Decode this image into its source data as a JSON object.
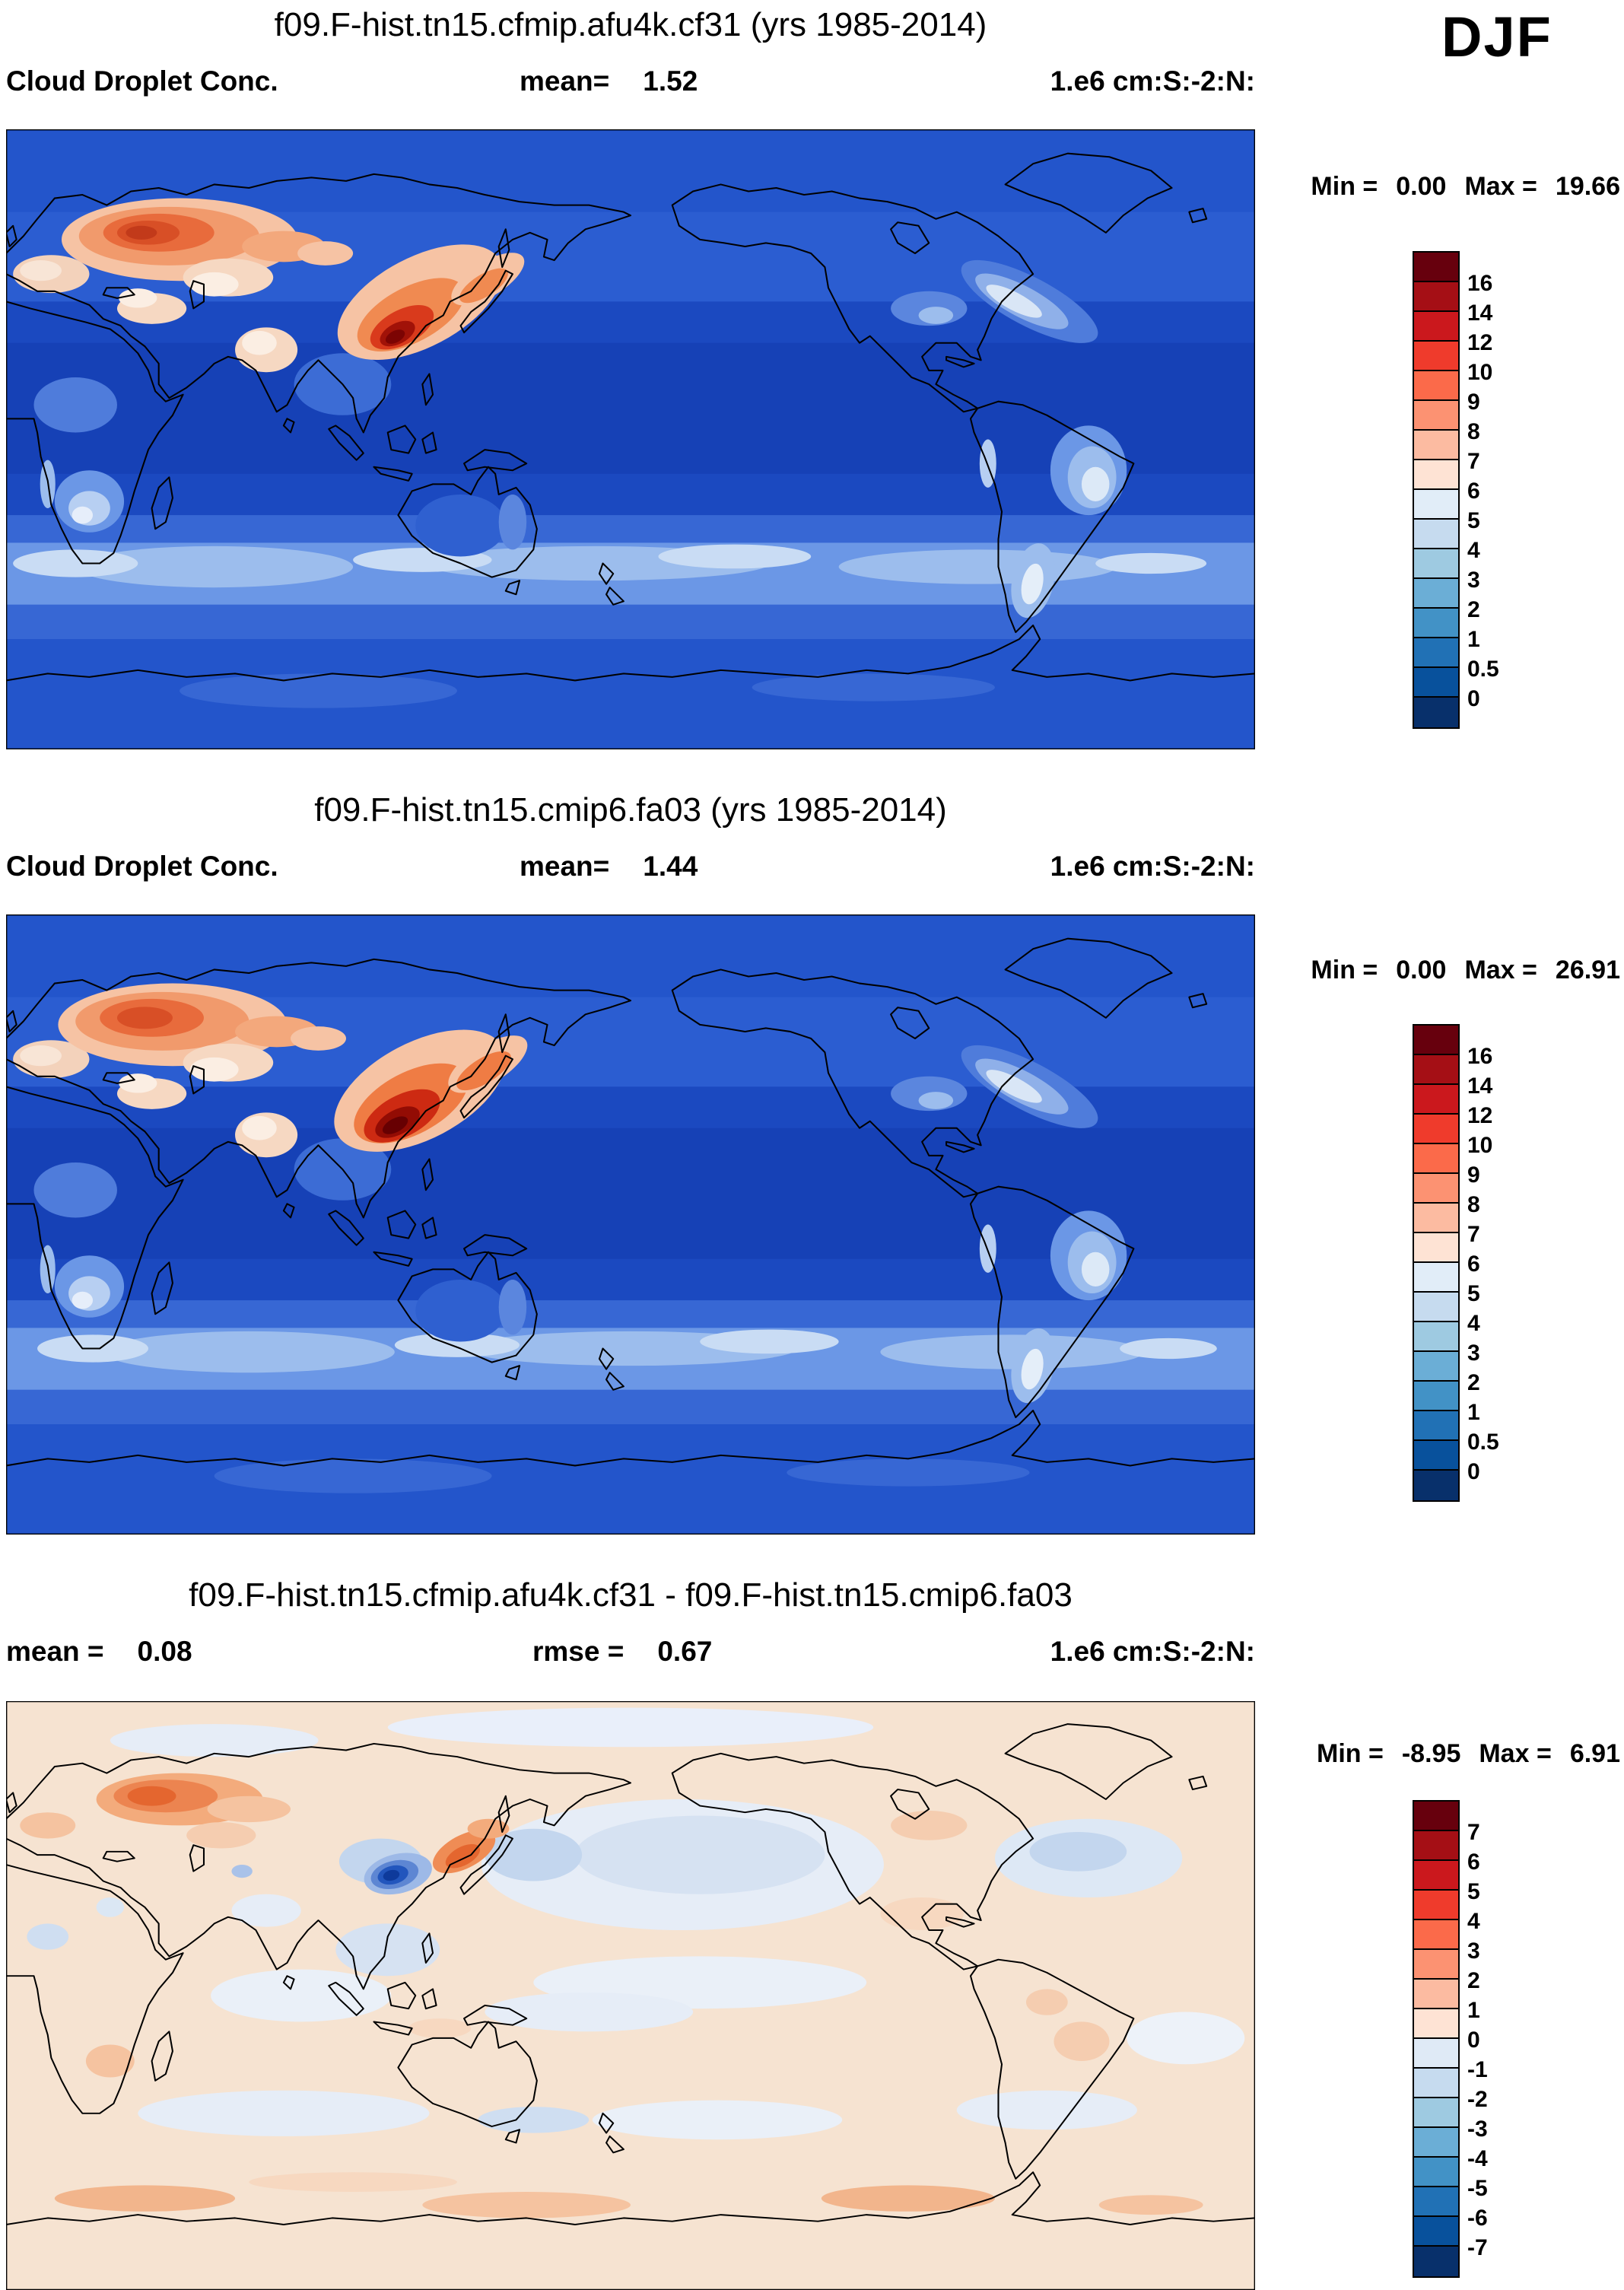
{
  "season_label": "DJF",
  "panels": [
    {
      "title": "f09.F-hist.tn15.cfmip.afu4k.cf31 (yrs 1985-2014)",
      "field_label": "Cloud Droplet Conc.",
      "stats": [
        {
          "label": "mean=",
          "value": "1.52"
        }
      ],
      "units": "1.e6 cm:S:-2:N:",
      "minmax": {
        "min_label": "Min =",
        "min_value": "0.00",
        "max_label": "Max =",
        "max_value": "19.66"
      },
      "colorbar": {
        "labels": [
          "16",
          "14",
          "12",
          "10",
          "9",
          "8",
          "7",
          "6",
          "5",
          "4",
          "3",
          "2",
          "1",
          "0.5",
          "0"
        ],
        "colors": [
          "#67000d",
          "#a50f15",
          "#cb181d",
          "#ef3b2c",
          "#fb6a4a",
          "#fc9272",
          "#fcbba1",
          "#fee3d4",
          "#e1edf8",
          "#c6dbef",
          "#9ecae1",
          "#6baed6",
          "#4292c6",
          "#2171b5",
          "#08519c",
          "#08306b"
        ]
      }
    },
    {
      "title": "f09.F-hist.tn15.cmip6.fa03 (yrs 1985-2014)",
      "field_label": "Cloud Droplet Conc.",
      "stats": [
        {
          "label": "mean=",
          "value": "1.44"
        }
      ],
      "units": "1.e6 cm:S:-2:N:",
      "minmax": {
        "min_label": "Min =",
        "min_value": "0.00",
        "max_label": "Max =",
        "max_value": "26.91"
      },
      "colorbar": {
        "labels": [
          "16",
          "14",
          "12",
          "10",
          "9",
          "8",
          "7",
          "6",
          "5",
          "4",
          "3",
          "2",
          "1",
          "0.5",
          "0"
        ],
        "colors": [
          "#67000d",
          "#a50f15",
          "#cb181d",
          "#ef3b2c",
          "#fb6a4a",
          "#fc9272",
          "#fcbba1",
          "#fee3d4",
          "#e1edf8",
          "#c6dbef",
          "#9ecae1",
          "#6baed6",
          "#4292c6",
          "#2171b5",
          "#08519c",
          "#08306b"
        ]
      }
    },
    {
      "title": "f09.F-hist.tn15.cfmip.afu4k.cf31 - f09.F-hist.tn15.cmip6.fa03",
      "stats": [
        {
          "label": "mean =",
          "value": "0.08"
        },
        {
          "label": "rmse =",
          "value": "0.67"
        }
      ],
      "units": "1.e6 cm:S:-2:N:",
      "minmax": {
        "min_label": "Min =",
        "min_value": "-8.95",
        "max_label": "Max =",
        "max_value": "6.91"
      },
      "colorbar": {
        "labels": [
          "7",
          "6",
          "5",
          "4",
          "3",
          "2",
          "1",
          "0",
          "-1",
          "-2",
          "-3",
          "-4",
          "-5",
          "-6",
          "-7"
        ],
        "colors": [
          "#67000d",
          "#a50f15",
          "#cb181d",
          "#ef3b2c",
          "#fb6a4a",
          "#fc9272",
          "#fcbba1",
          "#fee3d4",
          "#dfeaf6",
          "#c6dbef",
          "#9ecae1",
          "#6baed6",
          "#4292c6",
          "#2171b5",
          "#08519c",
          "#08306b"
        ]
      }
    }
  ],
  "chart_data": [
    {
      "type": "heatmap",
      "subtype": "filled-contour global map, longitude 0-360 (Pacific-centered), latitude 90N-90S",
      "title": "f09.F-hist.tn15.cfmip.afu4k.cf31 (yrs 1985-2014)",
      "variable": "Cloud Droplet Conc.",
      "season": "DJF",
      "units": "1.e6 cm:S:-2:N:",
      "mean": 1.52,
      "min": 0.0,
      "max": 19.66,
      "contour_levels": [
        0,
        0.5,
        1,
        2,
        3,
        4,
        5,
        6,
        7,
        8,
        9,
        10,
        12,
        14,
        16
      ],
      "legend_position": "right",
      "notable_features": [
        "maximum (dark red, >12) over eastern China extending toward Korea/Japan",
        "secondary orange maximum (8-12) over eastern Europe / western Russia",
        "pale (5-7) patches over India, Middle East, southern Africa, eastern South America, NW Atlantic storm track",
        "low values (0-1) over tropical oceans",
        "2-5 band over the Southern Ocean"
      ]
    },
    {
      "type": "heatmap",
      "subtype": "filled-contour global map, longitude 0-360 (Pacific-centered), latitude 90N-90S",
      "title": "f09.F-hist.tn15.cmip6.fa03 (yrs 1985-2014)",
      "variable": "Cloud Droplet Conc.",
      "season": "DJF",
      "units": "1.e6 cm:S:-2:N:",
      "mean": 1.44,
      "min": 0.0,
      "max": 26.91,
      "contour_levels": [
        0,
        0.5,
        1,
        2,
        3,
        4,
        5,
        6,
        7,
        8,
        9,
        10,
        12,
        14,
        16
      ],
      "legend_position": "right",
      "notable_features": [
        "stronger/darker maximum (>16) over eastern China",
        "orange maximum over eastern Europe / western Russia",
        "otherwise similar spatial pattern to top panel"
      ]
    },
    {
      "type": "heatmap",
      "subtype": "difference map (case1 - case2), filled contours",
      "title": "f09.F-hist.tn15.cfmip.afu4k.cf31 - f09.F-hist.tn15.cmip6.fa03",
      "variable": "Cloud Droplet Conc. difference",
      "season": "DJF",
      "units": "1.e6 cm:S:-2:N:",
      "mean": 0.08,
      "rmse": 0.67,
      "min": -8.95,
      "max": 6.91,
      "contour_levels": [
        -7,
        -6,
        -5,
        -4,
        -3,
        -2,
        -1,
        0,
        1,
        2,
        3,
        4,
        5,
        6,
        7
      ],
      "legend_position": "right",
      "notable_features": [
        "positive (orange/red) differences over western Russia and near Japan/Korea",
        "strong negative (dark blue) core over eastern China",
        "weak positive background (0-1) over most regions with scattered weak negative (pale blue) ocean patches"
      ]
    }
  ]
}
